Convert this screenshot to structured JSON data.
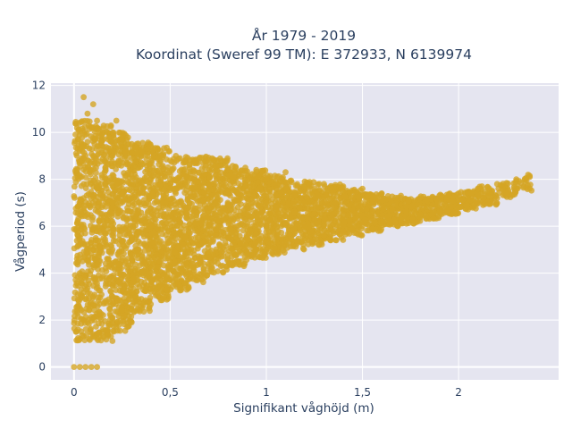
{
  "chart_data": {
    "type": "scatter",
    "title_line1": "År 1979 - 2019",
    "title_line2": "Koordinat (Sweref 99 TM): E 372933, N 6139974",
    "xlabel": "Signifikant våghöjd (m)",
    "ylabel": "Vågperiod (s)",
    "xlim": [
      -0.12,
      2.52
    ],
    "ylim": [
      -0.55,
      12.1
    ],
    "x_ticks": [
      {
        "value": 0,
        "label": "0"
      },
      {
        "value": 0.5,
        "label": "0,5"
      },
      {
        "value": 1,
        "label": "1"
      },
      {
        "value": 1.5,
        "label": "1,5"
      },
      {
        "value": 2,
        "label": "2"
      }
    ],
    "y_ticks": [
      {
        "value": 0,
        "label": "0"
      },
      {
        "value": 2,
        "label": "2"
      },
      {
        "value": 4,
        "label": "4"
      },
      {
        "value": 6,
        "label": "6"
      },
      {
        "value": 8,
        "label": "8"
      },
      {
        "value": 10,
        "label": "10"
      },
      {
        "value": 12,
        "label": "12"
      }
    ],
    "grid": true,
    "marker_color": "#D4A524",
    "background_color": "#E5E5F0",
    "points": [
      [
        0.0,
        0
      ],
      [
        0.03,
        0
      ],
      [
        0.06,
        0
      ],
      [
        0.09,
        0
      ],
      [
        0.12,
        0
      ],
      [
        0.01,
        1.5
      ],
      [
        0.02,
        2.3
      ],
      [
        0.02,
        3.1
      ],
      [
        0.03,
        4.0
      ],
      [
        0.03,
        5.2
      ],
      [
        0.04,
        6.5
      ],
      [
        0.05,
        7.8
      ],
      [
        0.06,
        8.5
      ],
      [
        0.07,
        9.6
      ],
      [
        0.05,
        1.3
      ],
      [
        0.05,
        2.0
      ],
      [
        0.08,
        1.2
      ],
      [
        0.1,
        1.3
      ],
      [
        0.12,
        1.4
      ],
      [
        0.15,
        1.6
      ],
      [
        0.2,
        2.0
      ],
      [
        0.25,
        2.4
      ],
      [
        0.3,
        2.6
      ],
      [
        0.35,
        2.9
      ],
      [
        0.4,
        3.2
      ],
      [
        0.45,
        3.5
      ],
      [
        0.5,
        3.7
      ],
      [
        0.6,
        4.0
      ],
      [
        0.7,
        4.3
      ],
      [
        0.8,
        4.6
      ],
      [
        0.9,
        4.8
      ],
      [
        1.0,
        5.0
      ],
      [
        1.1,
        5.2
      ],
      [
        1.2,
        5.4
      ],
      [
        1.3,
        5.6
      ],
      [
        1.4,
        5.8
      ],
      [
        1.5,
        6.0
      ],
      [
        1.6,
        6.2
      ],
      [
        1.7,
        6.3
      ],
      [
        1.8,
        6.5
      ],
      [
        1.9,
        6.6
      ],
      [
        2.0,
        6.8
      ],
      [
        2.1,
        7.0
      ],
      [
        2.2,
        7.2
      ],
      [
        2.3,
        7.6
      ],
      [
        2.37,
        8.1
      ],
      [
        0.05,
        11.5
      ],
      [
        0.07,
        10.8
      ],
      [
        0.09,
        10.2
      ],
      [
        0.1,
        11.2
      ],
      [
        0.12,
        10.5
      ],
      [
        0.15,
        10.0
      ],
      [
        0.18,
        9.8
      ],
      [
        0.22,
        10.5
      ],
      [
        0.25,
        9.7
      ],
      [
        0.3,
        9.5
      ],
      [
        0.35,
        9.2
      ],
      [
        0.4,
        9.4
      ],
      [
        0.45,
        9.0
      ],
      [
        0.5,
        8.8
      ],
      [
        0.55,
        8.9
      ],
      [
        0.6,
        8.6
      ],
      [
        0.7,
        8.7
      ],
      [
        0.8,
        8.4
      ],
      [
        0.9,
        8.2
      ],
      [
        1.0,
        8.0
      ],
      [
        1.1,
        8.3
      ],
      [
        1.2,
        7.9
      ],
      [
        1.3,
        7.8
      ],
      [
        1.4,
        7.7
      ],
      [
        1.5,
        7.6
      ],
      [
        1.6,
        7.4
      ],
      [
        1.7,
        7.3
      ],
      [
        1.8,
        7.2
      ],
      [
        1.9,
        7.3
      ],
      [
        2.0,
        7.4
      ],
      [
        2.1,
        7.6
      ],
      [
        2.2,
        7.8
      ],
      [
        2.3,
        8.0
      ],
      [
        0.1,
        3.0
      ],
      [
        0.1,
        5.0
      ],
      [
        0.1,
        7.0
      ],
      [
        0.1,
        9.0
      ],
      [
        0.2,
        3.0
      ],
      [
        0.2,
        5.0
      ],
      [
        0.2,
        7.0
      ],
      [
        0.2,
        9.0
      ],
      [
        0.3,
        3.5
      ],
      [
        0.3,
        5.5
      ],
      [
        0.3,
        7.5
      ],
      [
        0.4,
        4.0
      ],
      [
        0.4,
        6.0
      ],
      [
        0.4,
        8.0
      ],
      [
        0.5,
        4.5
      ],
      [
        0.5,
        6.5
      ],
      [
        0.5,
        8.0
      ],
      [
        0.6,
        5.0
      ],
      [
        0.6,
        7.0
      ],
      [
        0.7,
        5.5
      ],
      [
        0.7,
        7.5
      ],
      [
        0.8,
        5.5
      ],
      [
        0.8,
        7.0
      ],
      [
        0.9,
        6.0
      ],
      [
        0.9,
        7.5
      ],
      [
        1.0,
        6.0
      ],
      [
        1.0,
        7.0
      ],
      [
        1.2,
        6.0
      ],
      [
        1.2,
        7.0
      ],
      [
        1.4,
        6.5
      ],
      [
        1.6,
        6.8
      ],
      [
        1.8,
        6.9
      ],
      [
        2.0,
        7.1
      ]
    ],
    "distribution": {
      "note": "",
      "columns": [
        {
          "x_range": [
            0.0,
            0.1
          ],
          "y_min": 1.1,
          "y_max": 10.6,
          "weight": 60
        },
        {
          "x_range": [
            0.1,
            0.2
          ],
          "y_min": 1.1,
          "y_max": 10.3,
          "weight": 70
        },
        {
          "x_range": [
            0.2,
            0.3
          ],
          "y_min": 1.5,
          "y_max": 10.0,
          "weight": 70
        },
        {
          "x_range": [
            0.3,
            0.4
          ],
          "y_min": 2.3,
          "y_max": 9.6,
          "weight": 65
        },
        {
          "x_range": [
            0.4,
            0.5
          ],
          "y_min": 2.8,
          "y_max": 9.4,
          "weight": 60
        },
        {
          "x_range": [
            0.5,
            0.6
          ],
          "y_min": 3.2,
          "y_max": 9.0,
          "weight": 55
        },
        {
          "x_range": [
            0.6,
            0.7
          ],
          "y_min": 3.6,
          "y_max": 9.0,
          "weight": 50
        },
        {
          "x_range": [
            0.7,
            0.8
          ],
          "y_min": 4.0,
          "y_max": 8.9,
          "weight": 45
        },
        {
          "x_range": [
            0.8,
            0.9
          ],
          "y_min": 4.3,
          "y_max": 8.6,
          "weight": 42
        },
        {
          "x_range": [
            0.9,
            1.0
          ],
          "y_min": 4.6,
          "y_max": 8.4,
          "weight": 40
        },
        {
          "x_range": [
            1.0,
            1.1
          ],
          "y_min": 4.8,
          "y_max": 8.2,
          "weight": 38
        },
        {
          "x_range": [
            1.1,
            1.2
          ],
          "y_min": 5.0,
          "y_max": 8.0,
          "weight": 35
        },
        {
          "x_range": [
            1.2,
            1.3
          ],
          "y_min": 5.2,
          "y_max": 7.9,
          "weight": 32
        },
        {
          "x_range": [
            1.3,
            1.4
          ],
          "y_min": 5.4,
          "y_max": 7.8,
          "weight": 30
        },
        {
          "x_range": [
            1.4,
            1.5
          ],
          "y_min": 5.6,
          "y_max": 7.6,
          "weight": 28
        },
        {
          "x_range": [
            1.5,
            1.6
          ],
          "y_min": 5.8,
          "y_max": 7.4,
          "weight": 25
        },
        {
          "x_range": [
            1.6,
            1.7
          ],
          "y_min": 6.0,
          "y_max": 7.3,
          "weight": 22
        },
        {
          "x_range": [
            1.7,
            1.8
          ],
          "y_min": 6.1,
          "y_max": 7.2,
          "weight": 20
        },
        {
          "x_range": [
            1.8,
            1.9
          ],
          "y_min": 6.3,
          "y_max": 7.3,
          "weight": 18
        },
        {
          "x_range": [
            1.9,
            2.0
          ],
          "y_min": 6.5,
          "y_max": 7.4,
          "weight": 16
        },
        {
          "x_range": [
            2.0,
            2.1
          ],
          "y_min": 6.7,
          "y_max": 7.5,
          "weight": 14
        },
        {
          "x_range": [
            2.1,
            2.2
          ],
          "y_min": 6.9,
          "y_max": 7.7,
          "weight": 10
        },
        {
          "x_range": [
            2.2,
            2.3
          ],
          "y_min": 7.1,
          "y_max": 7.9,
          "weight": 7
        },
        {
          "x_range": [
            2.3,
            2.38
          ],
          "y_min": 7.5,
          "y_max": 8.2,
          "weight": 4
        }
      ]
    }
  }
}
